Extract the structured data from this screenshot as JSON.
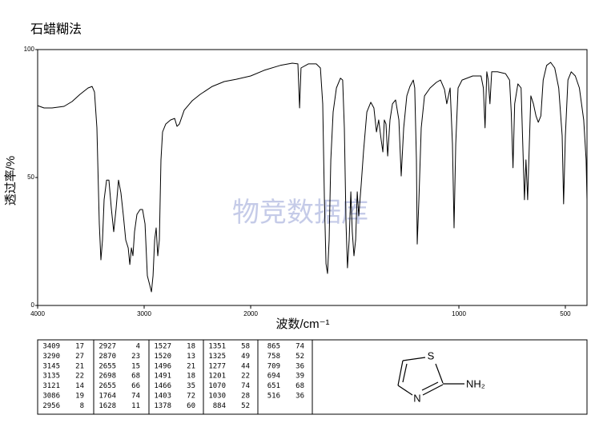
{
  "chart_data": {
    "type": "line",
    "title": "石蜡糊法",
    "x_label": "波数/cm⁻¹",
    "y_label": "透过率/%",
    "watermark": "物竞数据库",
    "color": "#000000",
    "xlim": [
      4000,
      400
    ],
    "xticks": [
      4000,
      3000,
      2000,
      1000,
      500
    ],
    "ylim": [
      0,
      100
    ],
    "yticks": [
      0,
      50,
      100
    ],
    "x": [
      4000,
      3940,
      3865,
      3752,
      3677,
      3602,
      3526,
      3489,
      3466,
      3444,
      3421,
      3406,
      3391,
      3376,
      3353,
      3331,
      3308,
      3286,
      3263,
      3241,
      3218,
      3195,
      3173,
      3150,
      3135,
      3120,
      3105,
      3090,
      3068,
      3038,
      3015,
      2992,
      2970,
      2947,
      2932,
      2917,
      2902,
      2887,
      2872,
      2857,
      2842,
      2827,
      2797,
      2752,
      2714,
      2692,
      2669,
      2624,
      2549,
      2474,
      2361,
      2248,
      2135,
      2000,
      1935,
      1858,
      1800,
      1773,
      1765,
      1758,
      1723,
      1685,
      1665,
      1654,
      1646,
      1638,
      1631,
      1623,
      1615,
      1604,
      1588,
      1569,
      1558,
      1550,
      1542,
      1535,
      1527,
      1519,
      1512,
      1504,
      1496,
      1488,
      1481,
      1469,
      1458,
      1442,
      1423,
      1408,
      1396,
      1385,
      1373,
      1365,
      1358,
      1350,
      1342,
      1331,
      1319,
      1304,
      1288,
      1277,
      1265,
      1250,
      1235,
      1219,
      1212,
      1204,
      1200,
      1192,
      1181,
      1165,
      1138,
      1108,
      1088,
      1069,
      1058,
      1042,
      1031,
      1023,
      1015,
      1004,
      985,
      935,
      896,
      885,
      877,
      869,
      862,
      854,
      846,
      819,
      781,
      762,
      754,
      746,
      738,
      723,
      708,
      700,
      692,
      685,
      677,
      669,
      662,
      650,
      638,
      627,
      615,
      604,
      588,
      569,
      550,
      531,
      515,
      508,
      500,
      488,
      473,
      454,
      435,
      415,
      404,
      400
    ],
    "values": [
      78.1,
      77.2,
      77.2,
      77.8,
      79.7,
      82.5,
      85,
      85.6,
      83.4,
      69.4,
      31.9,
      17.8,
      25.6,
      41.3,
      49,
      49,
      38,
      28.8,
      38,
      49,
      44,
      35,
      25.6,
      22.5,
      16,
      22.5,
      19.4,
      28.8,
      35.6,
      37.5,
      37.5,
      31.9,
      11.6,
      7.8,
      5.3,
      11.6,
      25.6,
      30.3,
      19.4,
      25.6,
      56.9,
      67.8,
      70.9,
      72.5,
      73.1,
      70,
      70.9,
      76.3,
      80,
      82.5,
      85.6,
      87.5,
      88.4,
      89.7,
      91.9,
      93.8,
      94.7,
      94.4,
      77.2,
      92.8,
      94.4,
      94.4,
      92.8,
      78.8,
      41.3,
      16.3,
      12.5,
      25.6,
      56.9,
      75.6,
      85,
      88.8,
      88.1,
      69.4,
      31.9,
      14.7,
      25.6,
      44.4,
      28.8,
      19.4,
      25.6,
      44.4,
      35,
      47.5,
      60,
      75.6,
      79.4,
      77.2,
      67.8,
      72.5,
      64.7,
      60,
      72.5,
      70.9,
      58.4,
      72.5,
      78.8,
      80.3,
      72.5,
      50.6,
      69.4,
      81.9,
      85.6,
      88.1,
      85,
      56.9,
      24,
      41.3,
      69.4,
      81.9,
      85,
      87.2,
      88.1,
      84.4,
      78.8,
      85,
      63.1,
      30.3,
      63.1,
      85,
      88.1,
      89.7,
      89.7,
      85,
      69.4,
      91.3,
      88.1,
      78.8,
      91.3,
      91.3,
      90.6,
      88.1,
      75.6,
      53.8,
      78.8,
      86.6,
      85,
      63.1,
      41.3,
      56.9,
      41.3,
      63.1,
      81.9,
      78.8,
      74.1,
      71.6,
      74.1,
      88.1,
      93.8,
      95,
      92.8,
      85,
      66.3,
      39.7,
      66.3,
      88.1,
      91.3,
      89.7,
      85,
      72.5,
      56.9,
      41.3
    ]
  },
  "peak_table": {
    "columns": [
      [
        [
          3409,
          17
        ],
        [
          3290,
          27
        ],
        [
          3145,
          21
        ],
        [
          3135,
          22
        ],
        [
          3121,
          14
        ],
        [
          3086,
          19
        ],
        [
          2956,
          8
        ]
      ],
      [
        [
          2927,
          4
        ],
        [
          2870,
          23
        ],
        [
          2655,
          15
        ],
        [
          2698,
          68
        ],
        [
          2655,
          66
        ],
        [
          1764,
          74
        ],
        [
          1628,
          11
        ]
      ],
      [
        [
          1527,
          18
        ],
        [
          1520,
          13
        ],
        [
          1496,
          21
        ],
        [
          1491,
          18
        ],
        [
          1466,
          35
        ],
        [
          1403,
          72
        ],
        [
          1378,
          60
        ]
      ],
      [
        [
          1351,
          58
        ],
        [
          1325,
          49
        ],
        [
          1277,
          44
        ],
        [
          1201,
          22
        ],
        [
          1070,
          74
        ],
        [
          1030,
          28
        ],
        [
          884,
          52
        ]
      ],
      [
        [
          865,
          74
        ],
        [
          758,
          52
        ],
        [
          709,
          36
        ],
        [
          694,
          39
        ],
        [
          651,
          68
        ],
        [
          516,
          36
        ]
      ]
    ]
  },
  "structure": {
    "atoms": [
      "S",
      "N",
      "NH₂"
    ]
  }
}
